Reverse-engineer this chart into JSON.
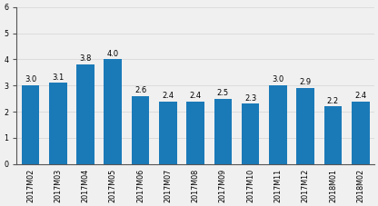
{
  "categories": [
    "2017M02",
    "2017M03",
    "2017M04",
    "2017M05",
    "2017M06",
    "2017M07",
    "2017M08",
    "2017M09",
    "2017M10",
    "2017M11",
    "2017M12",
    "2018M01",
    "2018M02"
  ],
  "values": [
    3.0,
    3.1,
    3.8,
    4.0,
    2.6,
    2.4,
    2.4,
    2.5,
    2.3,
    3.0,
    2.9,
    2.2,
    2.4
  ],
  "bar_color": "#1a7ab8",
  "ylim": [
    0,
    6
  ],
  "yticks": [
    0,
    1,
    2,
    3,
    4,
    5,
    6
  ],
  "grid_color": "#d9d9d9",
  "background_color": "#f0f0f0",
  "value_fontsize": 6.0,
  "tick_fontsize": 5.8
}
